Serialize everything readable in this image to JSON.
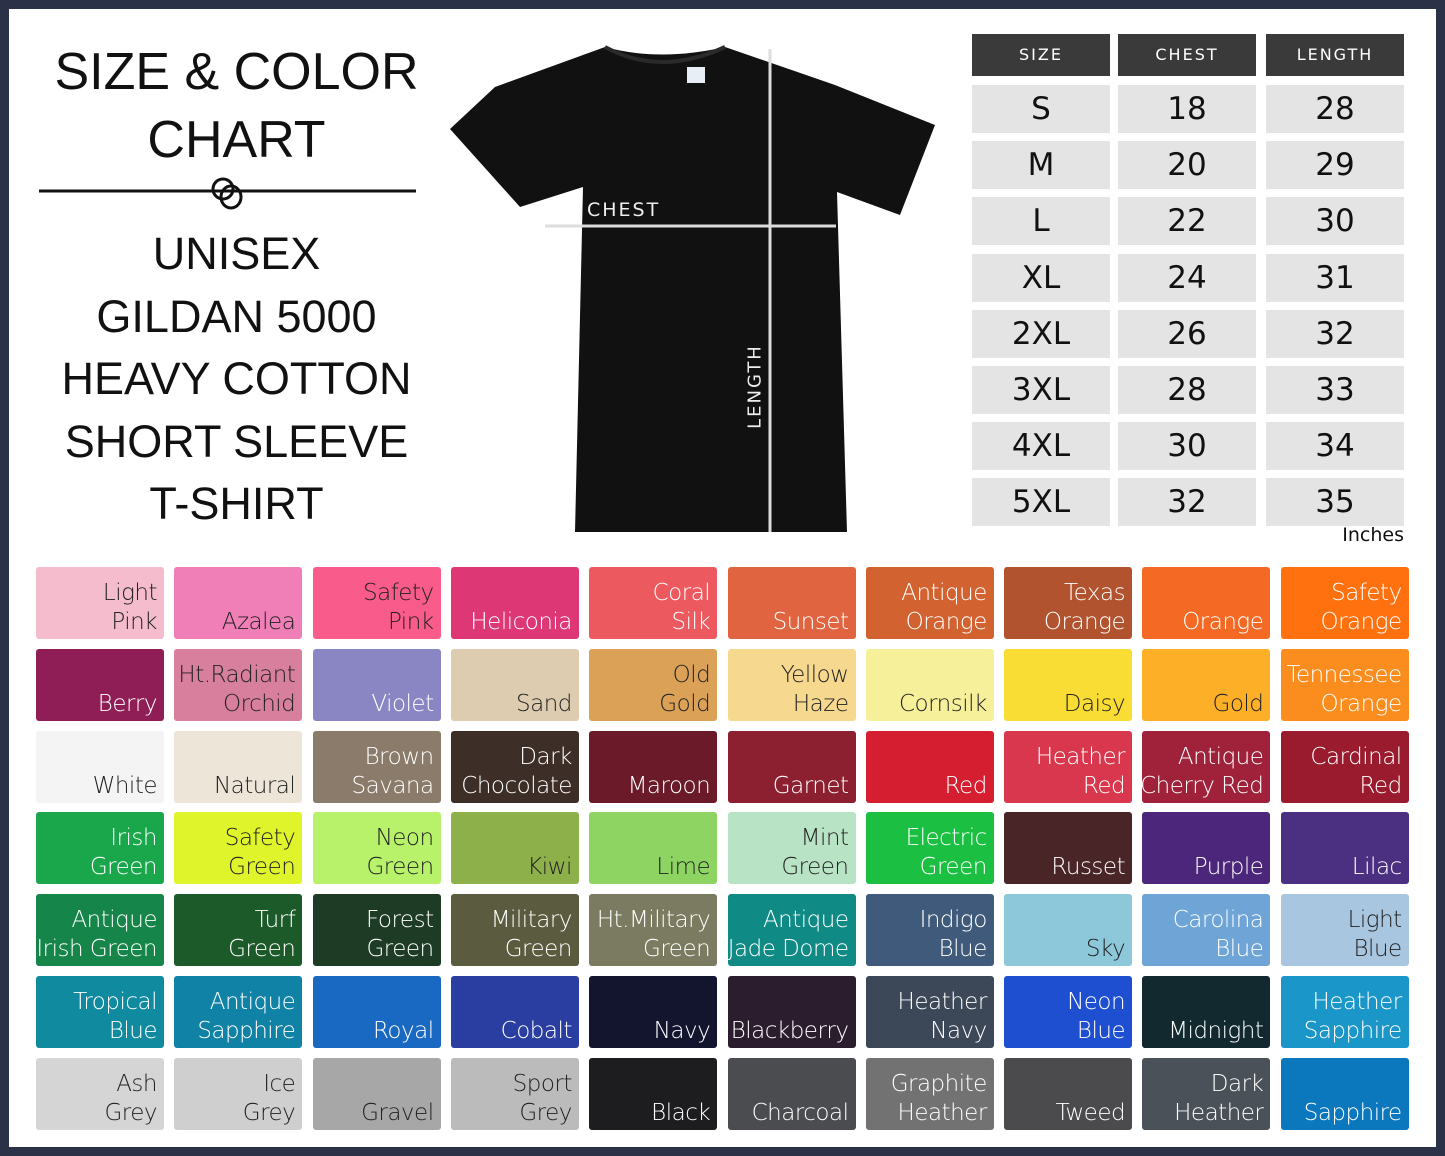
{
  "title": {
    "lines": [
      "SIZE & COLOR",
      "CHART"
    ]
  },
  "subtitle": {
    "lines": [
      "UNISEX",
      "GILDAN 5000",
      "HEAVY COTTON",
      "SHORT SLEEVE",
      "T-SHIRT"
    ]
  },
  "shirt": {
    "chest_label": "CHEST",
    "length_label": "LENGTH",
    "color": "#111111"
  },
  "size_table": {
    "headers": [
      "SIZE",
      "CHEST",
      "LENGTH"
    ],
    "rows": [
      [
        "S",
        "18",
        "28"
      ],
      [
        "M",
        "20",
        "29"
      ],
      [
        "L",
        "22",
        "30"
      ],
      [
        "XL",
        "24",
        "31"
      ],
      [
        "2XL",
        "26",
        "32"
      ],
      [
        "3XL",
        "28",
        "33"
      ],
      [
        "4XL",
        "30",
        "34"
      ],
      [
        "5XL",
        "32",
        "35"
      ]
    ],
    "unit": "Inches"
  },
  "colors": [
    {
      "lines": [
        "Light",
        "Pink"
      ],
      "hex": "#f4bccd",
      "text": "#222"
    },
    {
      "lines": [
        "Azalea"
      ],
      "hex": "#f07fb8",
      "text": "#222"
    },
    {
      "lines": [
        "Safety",
        "Pink"
      ],
      "hex": "#f95b8a",
      "text": "#222"
    },
    {
      "lines": [
        "Heliconia"
      ],
      "hex": "#dd3776",
      "text": "#fff"
    },
    {
      "lines": [
        "Coral",
        "Silk"
      ],
      "hex": "#ec5a60",
      "text": "#fff"
    },
    {
      "lines": [
        "Sunset"
      ],
      "hex": "#df643f",
      "text": "#fff"
    },
    {
      "lines": [
        "Antique",
        "Orange"
      ],
      "hex": "#d2622f",
      "text": "#fff"
    },
    {
      "lines": [
        "Texas",
        "Orange"
      ],
      "hex": "#b1532f",
      "text": "#fff"
    },
    {
      "lines": [
        "Orange"
      ],
      "hex": "#f46a24",
      "text": "#fff"
    },
    {
      "lines": [
        "Safety",
        "Orange"
      ],
      "hex": "#ff700f",
      "text": "#fff"
    },
    {
      "lines": [
        "Berry"
      ],
      "hex": "#8e1e55",
      "text": "#fff"
    },
    {
      "lines": [
        "Ht.Radiant",
        "Orchid"
      ],
      "hex": "#d77f9c",
      "text": "#222"
    },
    {
      "lines": [
        "Violet"
      ],
      "hex": "#8a86c4",
      "text": "#fff"
    },
    {
      "lines": [
        "Sand"
      ],
      "hex": "#ddccb0",
      "text": "#222"
    },
    {
      "lines": [
        "Old",
        "Gold"
      ],
      "hex": "#dba257",
      "text": "#222"
    },
    {
      "lines": [
        "Yellow",
        "Haze"
      ],
      "hex": "#f6d88e",
      "text": "#222"
    },
    {
      "lines": [
        "Cornsilk"
      ],
      "hex": "#f7f09a",
      "text": "#222"
    },
    {
      "lines": [
        "Daisy"
      ],
      "hex": "#f9dc34",
      "text": "#222"
    },
    {
      "lines": [
        "Gold"
      ],
      "hex": "#fcaf27",
      "text": "#222"
    },
    {
      "lines": [
        "Tennessee",
        "Orange"
      ],
      "hex": "#fb8d1f",
      "text": "#fff"
    },
    {
      "lines": [
        "White"
      ],
      "hex": "#f4f4f4",
      "text": "#222"
    },
    {
      "lines": [
        "Natural"
      ],
      "hex": "#ede5d8",
      "text": "#222"
    },
    {
      "lines": [
        "Brown",
        "Savana"
      ],
      "hex": "#8a7b6a",
      "text": "#fff"
    },
    {
      "lines": [
        "Dark",
        "Chocolate"
      ],
      "hex": "#3e2e28",
      "text": "#fff"
    },
    {
      "lines": [
        "Maroon"
      ],
      "hex": "#6a1a28",
      "text": "#fff"
    },
    {
      "lines": [
        "Garnet"
      ],
      "hex": "#8c2030",
      "text": "#fff"
    },
    {
      "lines": [
        "Red"
      ],
      "hex": "#d51f30",
      "text": "#fff"
    },
    {
      "lines": [
        "Heather",
        "Red"
      ],
      "hex": "#d8374d",
      "text": "#fff"
    },
    {
      "lines": [
        "Antique",
        "Cherry Red"
      ],
      "hex": "#a0213a",
      "text": "#fff"
    },
    {
      "lines": [
        "Cardinal",
        "Red"
      ],
      "hex": "#9b1b2e",
      "text": "#fff"
    },
    {
      "lines": [
        "Irish",
        "Green"
      ],
      "hex": "#1aa74c",
      "text": "#fff"
    },
    {
      "lines": [
        "Safety",
        "Green"
      ],
      "hex": "#dff42a",
      "text": "#222"
    },
    {
      "lines": [
        "Neon",
        "Green"
      ],
      "hex": "#b8f26a",
      "text": "#222"
    },
    {
      "lines": [
        "Kiwi"
      ],
      "hex": "#8eb04a",
      "text": "#222"
    },
    {
      "lines": [
        "Lime"
      ],
      "hex": "#8dd462",
      "text": "#222"
    },
    {
      "lines": [
        "Mint",
        "Green"
      ],
      "hex": "#b9e3c5",
      "text": "#222"
    },
    {
      "lines": [
        "Electric",
        "Green"
      ],
      "hex": "#1bbf41",
      "text": "#fff"
    },
    {
      "lines": [
        "Russet"
      ],
      "hex": "#4a2528",
      "text": "#fff"
    },
    {
      "lines": [
        "Purple"
      ],
      "hex": "#4c267a",
      "text": "#fff"
    },
    {
      "lines": [
        "Lilac"
      ],
      "hex": "#4b2f81",
      "text": "#fff"
    },
    {
      "lines": [
        "Antique",
        "Irish Green"
      ],
      "hex": "#16854a",
      "text": "#fff"
    },
    {
      "lines": [
        "Turf",
        "Green"
      ],
      "hex": "#1c5a2a",
      "text": "#fff"
    },
    {
      "lines": [
        "Forest",
        "Green"
      ],
      "hex": "#1e3b26",
      "text": "#fff"
    },
    {
      "lines": [
        "Military",
        "Green"
      ],
      "hex": "#5b5b3f",
      "text": "#fff"
    },
    {
      "lines": [
        "Ht.Military",
        "Green"
      ],
      "hex": "#7a7b60",
      "text": "#fff"
    },
    {
      "lines": [
        "Antique",
        "Jade Dome"
      ],
      "hex": "#0f8a84",
      "text": "#fff"
    },
    {
      "lines": [
        "Indigo",
        "Blue"
      ],
      "hex": "#3f5a7a",
      "text": "#fff"
    },
    {
      "lines": [
        "Sky"
      ],
      "hex": "#8cc7da",
      "text": "#222"
    },
    {
      "lines": [
        "Carolina",
        "Blue"
      ],
      "hex": "#6ea4d6",
      "text": "#fff"
    },
    {
      "lines": [
        "Light",
        "Blue"
      ],
      "hex": "#a9c6e0",
      "text": "#222"
    },
    {
      "lines": [
        "Tropical",
        "Blue"
      ],
      "hex": "#108a9f",
      "text": "#fff"
    },
    {
      "lines": [
        "Antique",
        "Sapphire"
      ],
      "hex": "#0f82a5",
      "text": "#fff"
    },
    {
      "lines": [
        "Royal"
      ],
      "hex": "#1968c2",
      "text": "#fff"
    },
    {
      "lines": [
        "Cobalt"
      ],
      "hex": "#2a3da0",
      "text": "#fff"
    },
    {
      "lines": [
        "Navy"
      ],
      "hex": "#13152f",
      "text": "#fff"
    },
    {
      "lines": [
        "Blackberry"
      ],
      "hex": "#2c1d2e",
      "text": "#fff"
    },
    {
      "lines": [
        "Heather",
        "Navy"
      ],
      "hex": "#3c4858",
      "text": "#fff"
    },
    {
      "lines": [
        "Neon",
        "Blue"
      ],
      "hex": "#1e4fd1",
      "text": "#fff"
    },
    {
      "lines": [
        "Midnight"
      ],
      "hex": "#122a2f",
      "text": "#fff"
    },
    {
      "lines": [
        "Heather",
        "Sapphire"
      ],
      "hex": "#1a96c8",
      "text": "#fff"
    },
    {
      "lines": [
        "Ash",
        "Grey"
      ],
      "hex": "#d5d5d5",
      "text": "#222"
    },
    {
      "lines": [
        "Ice",
        "Grey"
      ],
      "hex": "#cfcfcf",
      "text": "#222"
    },
    {
      "lines": [
        "Gravel"
      ],
      "hex": "#a7a7a7",
      "text": "#222"
    },
    {
      "lines": [
        "Sport",
        "Grey"
      ],
      "hex": "#bbbbbb",
      "text": "#222"
    },
    {
      "lines": [
        "Black"
      ],
      "hex": "#1d1d1f",
      "text": "#fff"
    },
    {
      "lines": [
        "Charcoal"
      ],
      "hex": "#4a4c50",
      "text": "#fff"
    },
    {
      "lines": [
        "Graphite",
        "Heather"
      ],
      "hex": "#727272",
      "text": "#fff"
    },
    {
      "lines": [
        "Tweed"
      ],
      "hex": "#4b4a4c",
      "text": "#fff"
    },
    {
      "lines": [
        "Dark",
        "Heather"
      ],
      "hex": "#4a5158",
      "text": "#fff"
    },
    {
      "lines": [
        "Sapphire"
      ],
      "hex": "#0b78bd",
      "text": "#fff"
    }
  ]
}
